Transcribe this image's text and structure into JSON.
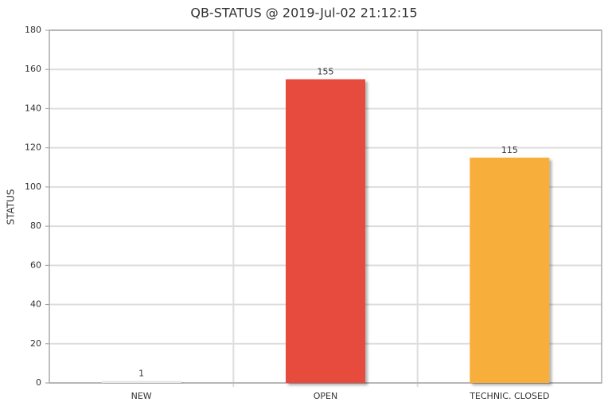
{
  "chart_data": {
    "type": "bar",
    "title": "QB-STATUS @ 2019-Jul-02 21:12:15",
    "ylabel": "STATUS",
    "categories": [
      "NEW",
      "OPEN",
      "TECHNIC. CLOSED"
    ],
    "values": [
      1,
      155,
      115
    ],
    "colors": [
      "#e6e6e6",
      "#e74c3c",
      "#f8ae3a"
    ],
    "ylim": [
      0,
      180
    ],
    "yticks": [
      0,
      20,
      40,
      60,
      80,
      100,
      120,
      140,
      160,
      180
    ],
    "grid": true
  }
}
